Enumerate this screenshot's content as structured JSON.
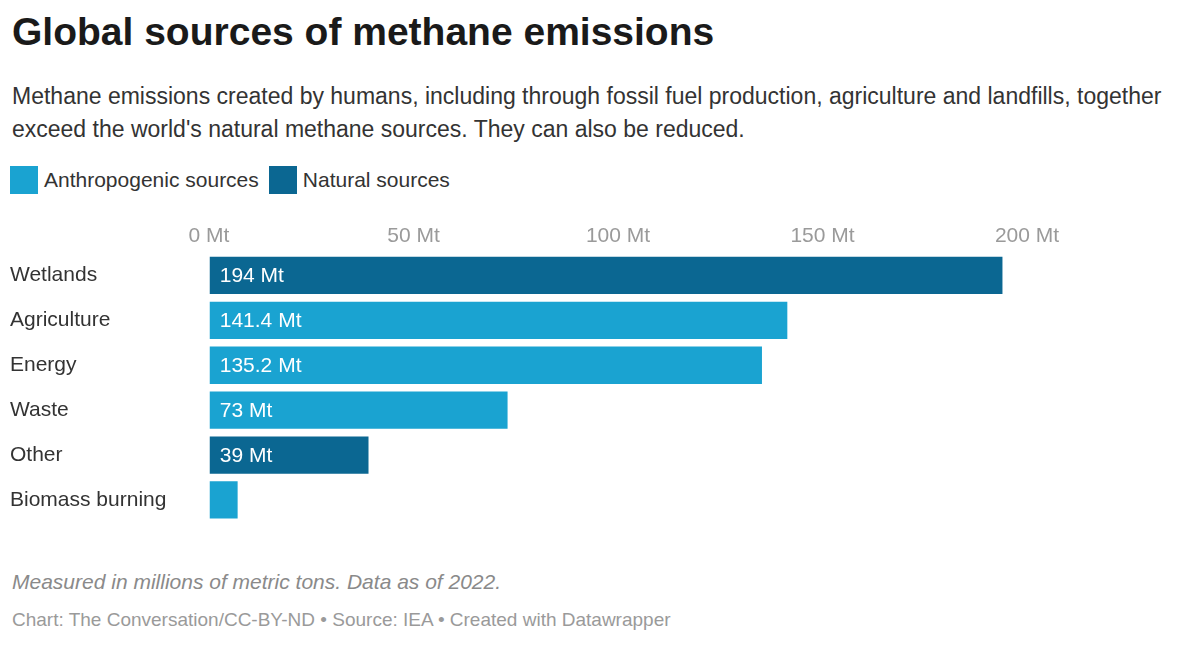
{
  "chart_data": {
    "type": "bar",
    "orientation": "horizontal",
    "title": "Global sources of methane emissions",
    "subtitle": "Methane emissions created by humans, including through fossil fuel production, agriculture and landfills, together exceed the world's natural methane sources. They can also be reduced.",
    "caption": "Measured in millions of metric tons. Data as of 2022.",
    "source": "Chart: The Conversation/CC-BY-ND • Source: IEA • Created with Datawrapper",
    "categories": [
      "Wetlands",
      "Agriculture",
      "Energy",
      "Waste",
      "Other",
      "Biomass burning"
    ],
    "series": [
      {
        "name": "Anthropogenic sources",
        "color": "#1aa3d1",
        "values": [
          null,
          141.4,
          135.2,
          73,
          null,
          7
        ],
        "value_labels": [
          null,
          "141.4 Mt",
          "135.2 Mt",
          "73 Mt",
          null,
          null
        ]
      },
      {
        "name": "Natural sources",
        "color": "#0b6792",
        "values": [
          194,
          null,
          null,
          null,
          39,
          null
        ],
        "value_labels": [
          "194 Mt",
          null,
          null,
          null,
          "39 Mt",
          null
        ]
      }
    ],
    "xlim": [
      0,
      200
    ],
    "xticks": [
      {
        "value": 0,
        "label": "0 Mt"
      },
      {
        "value": 50,
        "label": "50 Mt"
      },
      {
        "value": 100,
        "label": "100 Mt"
      },
      {
        "value": 150,
        "label": "150 Mt"
      },
      {
        "value": 200,
        "label": "200 Mt"
      }
    ],
    "grid": true,
    "legend": "top-left",
    "data_labels": true
  }
}
